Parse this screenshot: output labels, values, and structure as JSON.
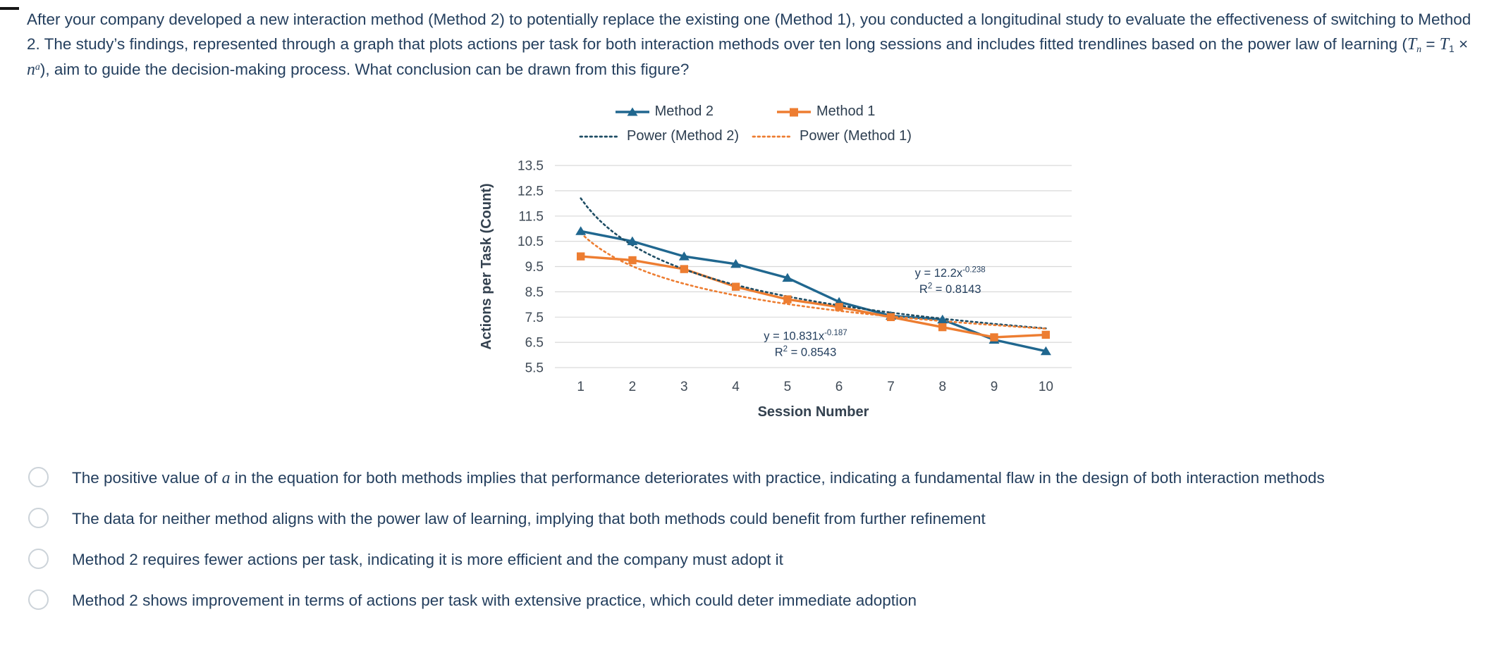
{
  "question": {
    "text_before_formula": "After your company developed a new interaction method (Method 2) to potentially replace the existing one (Method 1), you conducted a longitudinal study to evaluate the effectiveness of switching to Method 2. The study’s findings, represented through a graph that plots actions per task for both interaction methods over ten long sessions and includes fitted trendlines based on the power law of learning (",
    "formula": {
      "T": "T",
      "sub_n": "n",
      "equals": " = ",
      "T2": "T",
      "sub_1": "1",
      "times": " × ",
      "n": "n",
      "sup_a": "a"
    },
    "text_after_formula": "), aim to guide the decision-making process. What conclusion can be drawn from this figure?"
  },
  "chart_data": {
    "type": "line",
    "x": [
      1,
      2,
      3,
      4,
      5,
      6,
      7,
      8,
      9,
      10
    ],
    "xlabel": "Session Number",
    "ylabel": "Actions per Task (Count)",
    "ylim": [
      5.5,
      13.5
    ],
    "yticks": [
      5.5,
      6.5,
      7.5,
      8.5,
      9.5,
      10.5,
      11.5,
      12.5,
      13.5
    ],
    "grid": "horizontal",
    "legend_position": "top",
    "series": [
      {
        "name": "Method 2",
        "color": "#20678F",
        "marker": "triangle",
        "line": "solid",
        "values": [
          10.9,
          10.5,
          9.9,
          9.6,
          9.05,
          8.1,
          7.55,
          7.4,
          6.6,
          6.15
        ]
      },
      {
        "name": "Method 1",
        "color": "#ED7D31",
        "marker": "square",
        "line": "solid",
        "values": [
          9.9,
          9.75,
          9.4,
          8.7,
          8.2,
          7.9,
          7.5,
          7.1,
          6.7,
          6.8
        ]
      },
      {
        "name": "Power (Method 2)",
        "color": "#1E4D64",
        "line": "dotted",
        "power": {
          "T1": 12.2,
          "a": -0.238,
          "r2": 0.8143
        }
      },
      {
        "name": "Power (Method 1)",
        "color": "#ED7D31",
        "line": "dotted",
        "power": {
          "T1": 10.831,
          "a": -0.187,
          "r2": 0.8543
        }
      }
    ],
    "annotations": [
      {
        "eq": "y = 12.2x",
        "exp": "-0.238",
        "r2_pre": "R",
        "r2_sup": "2",
        "r2_post": " = 0.8143",
        "x": 8.15,
        "y": 9.1
      },
      {
        "eq": "y = 10.831x",
        "exp": "-0.187",
        "r2_pre": "R",
        "r2_sup": "2",
        "r2_post": " = 0.8543",
        "x": 5.35,
        "y": 6.6
      }
    ]
  },
  "options": [
    {
      "pre": "The positive value of ",
      "em": "a",
      "post": " in the equation for both methods implies that performance deteriorates with practice, indicating a fundamental flaw in the design of both interaction methods"
    },
    {
      "pre": "The data for neither method aligns with the power law of learning, implying that both methods could benefit from further refinement",
      "em": "",
      "post": ""
    },
    {
      "pre": "Method 2 requires fewer actions per task, indicating it is more efficient and the company must adopt it",
      "em": "",
      "post": ""
    },
    {
      "pre": "Method 2 shows improvement in terms of actions per task with extensive practice, which could deter immediate adoption",
      "em": "",
      "post": ""
    }
  ]
}
